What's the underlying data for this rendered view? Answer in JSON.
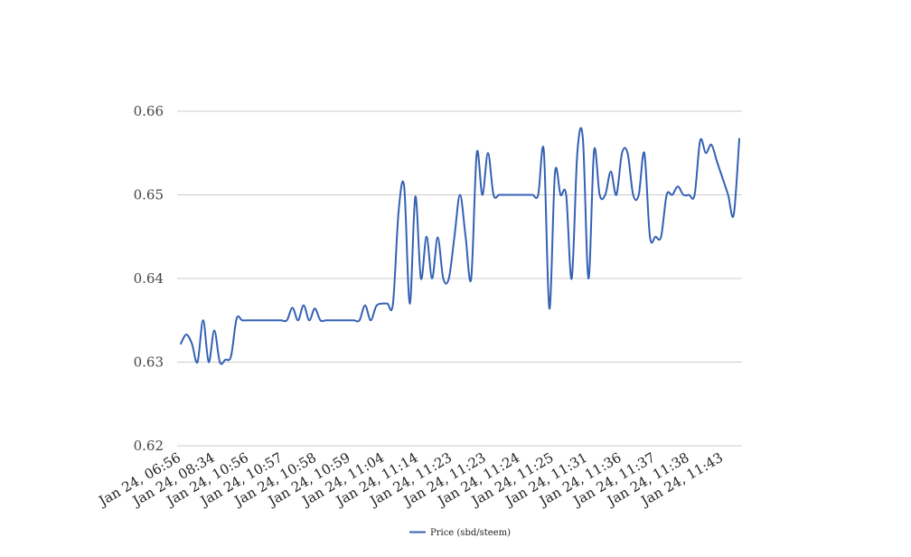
{
  "chart_data": {
    "type": "line",
    "title": "",
    "xlabel": "",
    "ylabel": "",
    "ylim": [
      0.62,
      0.66
    ],
    "yticks": [
      "0.62",
      "0.63",
      "0.64",
      "0.65",
      "0.66"
    ],
    "grid": true,
    "legend_position": "bottom-center",
    "x_tick_labels": [
      "Jan 24, 06:56",
      "Jan 24, 08:34",
      "Jan 24, 10:56",
      "Jan 24, 10:57",
      "Jan 24, 10:58",
      "Jan 24, 10:59",
      "Jan 24, 11:04",
      "Jan 24, 11:14",
      "Jan 24, 11:23",
      "Jan 24, 11:23",
      "Jan 24, 11:24",
      "Jan 24, 11:25",
      "Jan 24, 11:31",
      "Jan 24, 11:36",
      "Jan 24, 11:37",
      "Jan 24, 11:38",
      "Jan 24, 11:43"
    ],
    "series": [
      {
        "name": "Price (sbd/steem)",
        "color": "#3461b3",
        "values": [
          0.6322,
          0.6333,
          0.6322,
          0.63,
          0.635,
          0.63,
          0.6338,
          0.63,
          0.6303,
          0.6307,
          0.6352,
          0.635,
          0.635,
          0.635,
          0.635,
          0.635,
          0.635,
          0.635,
          0.635,
          0.635,
          0.6365,
          0.635,
          0.6368,
          0.635,
          0.6364,
          0.635,
          0.635,
          0.635,
          0.635,
          0.635,
          0.635,
          0.635,
          0.635,
          0.6368,
          0.635,
          0.6367,
          0.637,
          0.637,
          0.637,
          0.648,
          0.651,
          0.637,
          0.6498,
          0.64,
          0.645,
          0.64,
          0.6449,
          0.64,
          0.64,
          0.645,
          0.65,
          0.645,
          0.64,
          0.655,
          0.65,
          0.655,
          0.65,
          0.65,
          0.65,
          0.65,
          0.65,
          0.65,
          0.65,
          0.65,
          0.65,
          0.6553,
          0.6364,
          0.6526,
          0.65,
          0.65,
          0.64,
          0.655,
          0.6567,
          0.64,
          0.6553,
          0.65,
          0.65,
          0.6528,
          0.65,
          0.655,
          0.655,
          0.65,
          0.65,
          0.655,
          0.645,
          0.645,
          0.645,
          0.65,
          0.65,
          0.651,
          0.65,
          0.65,
          0.65,
          0.6565,
          0.655,
          0.656,
          0.654,
          0.652,
          0.65,
          0.6476,
          0.6567
        ]
      }
    ]
  }
}
